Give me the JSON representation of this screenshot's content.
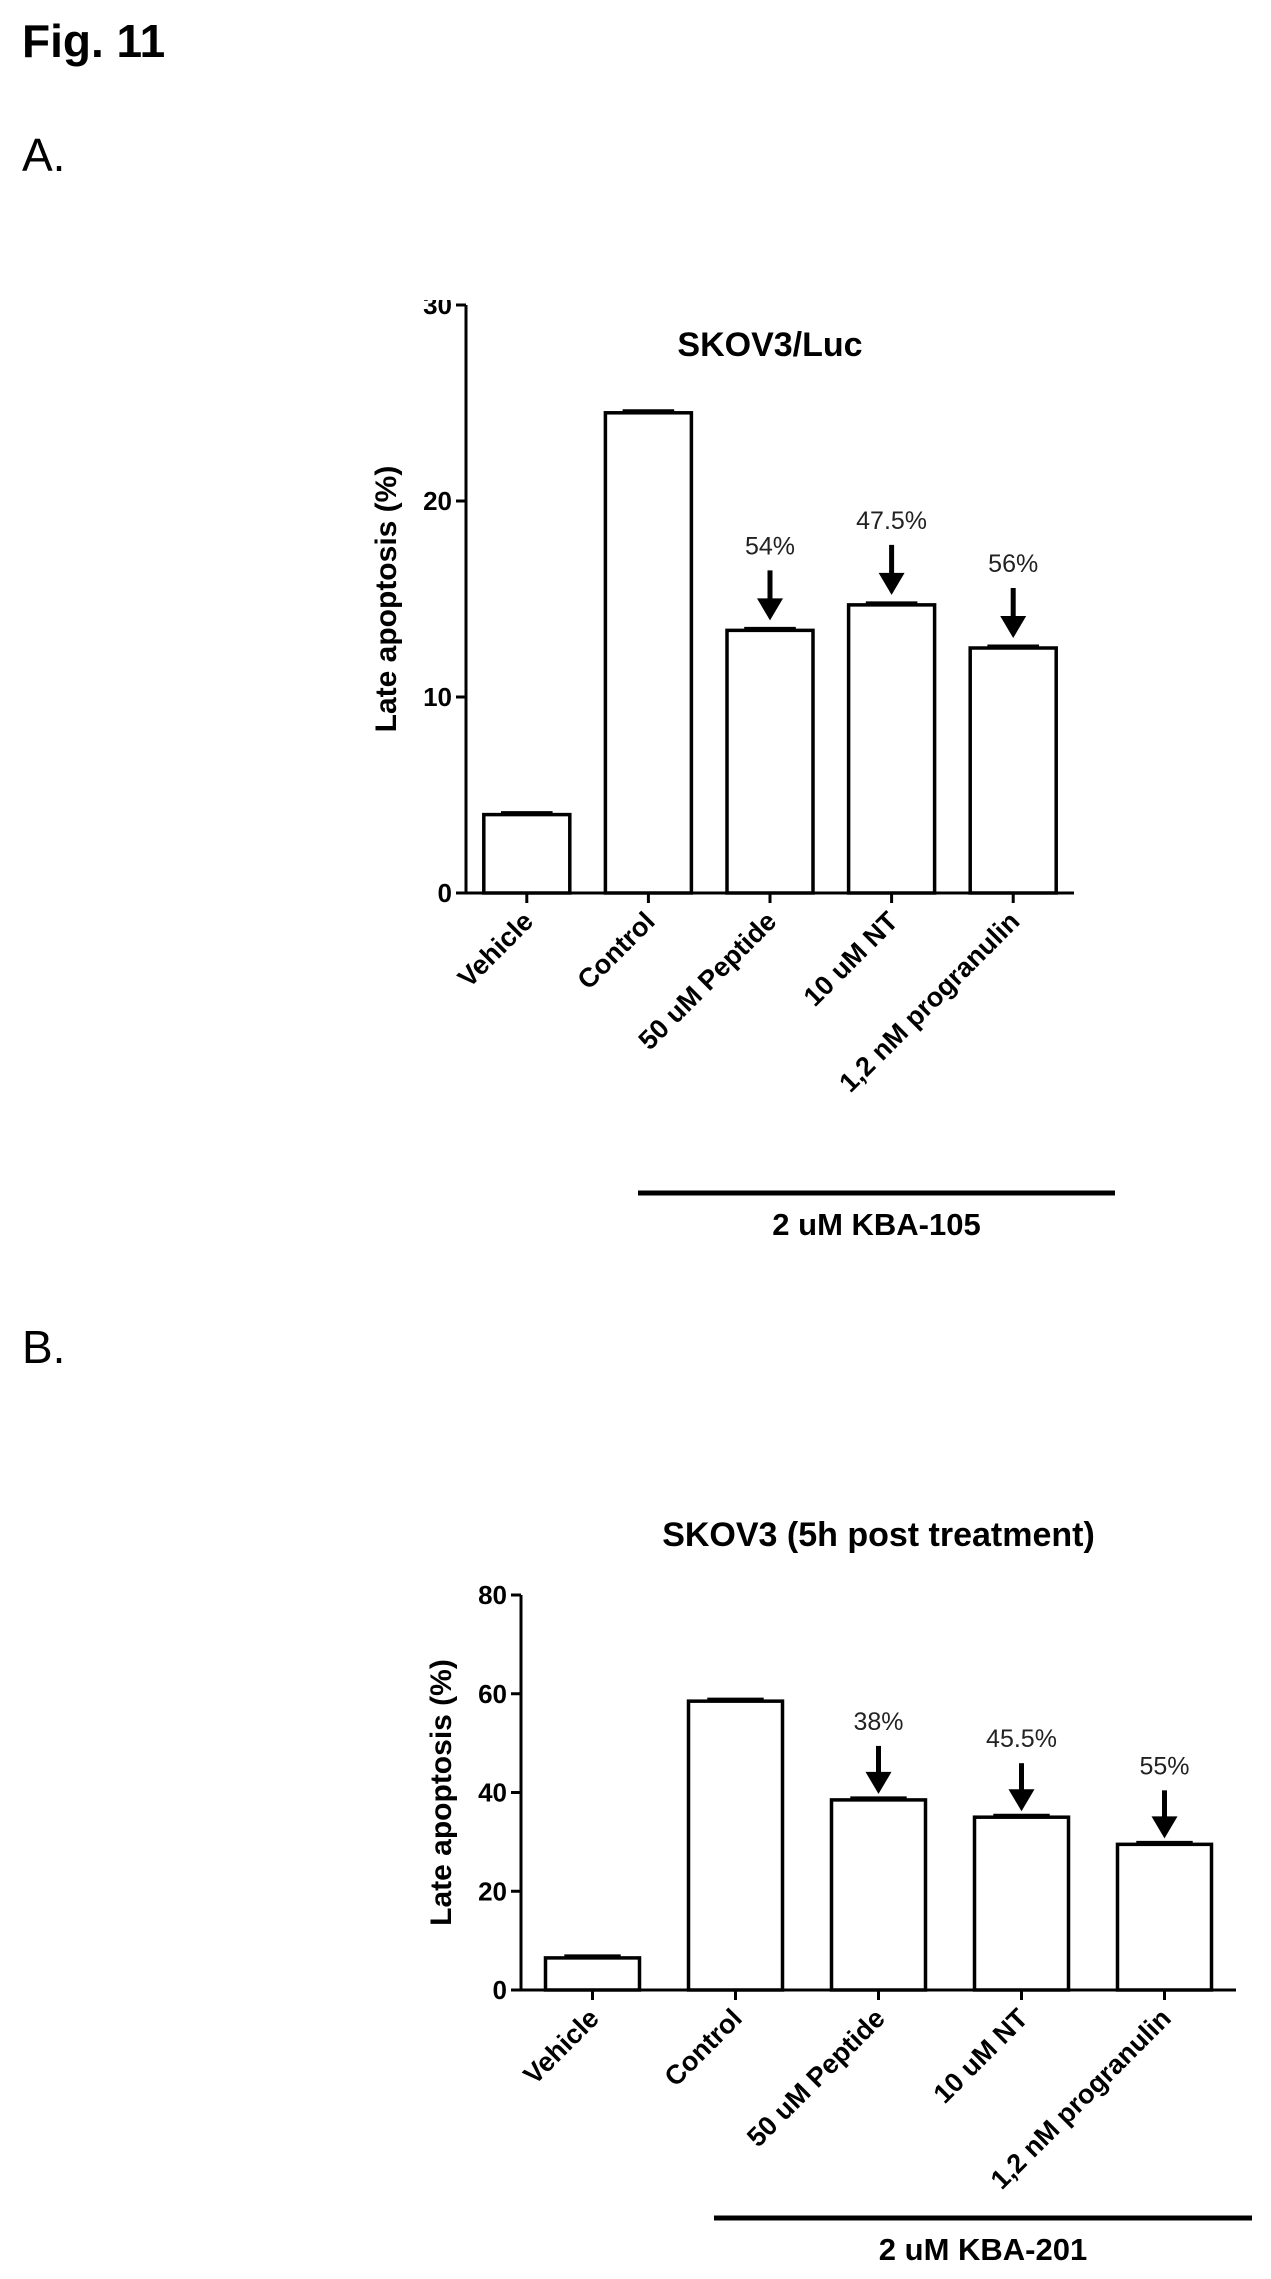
{
  "figure": {
    "label": "Fig. 11"
  },
  "panels": [
    {
      "label": "A."
    },
    {
      "label": "B."
    }
  ],
  "chart_data": [
    {
      "type": "bar",
      "title": "SKOV3/Luc",
      "ylabel": "Late apoptosis (%)",
      "xlabel": "",
      "categories": [
        "Vehicle",
        "Control",
        "50 uM Peptide",
        "10 uM NT",
        "1,2 nM progranulin"
      ],
      "values": [
        4,
        24.5,
        13.4,
        14.7,
        12.5
      ],
      "ylim": [
        0,
        30
      ],
      "yticks": [
        "0",
        "10",
        "20",
        "30"
      ],
      "annotations": [
        {
          "category": "50 uM Peptide",
          "text": "54%"
        },
        {
          "category": "10 uM NT",
          "text": "47.5%"
        },
        {
          "category": "1,2 nM progranulin",
          "text": "56%"
        }
      ],
      "treatment_group": {
        "label": "2 uM KBA-105",
        "from": "Control",
        "to": "1,2 nM progranulin"
      },
      "grid": false
    },
    {
      "type": "bar",
      "title": "SKOV3 (5h post treatment)",
      "ylabel": "Late apoptosis (%)",
      "xlabel": "",
      "categories": [
        "Vehicle",
        "Control",
        "50 uM Peptide",
        "10 uM NT",
        "1,2 nM progranulin"
      ],
      "values": [
        6.5,
        58.5,
        38.5,
        35,
        29.5
      ],
      "ylim": [
        0,
        80
      ],
      "yticks": [
        "0",
        "20",
        "40",
        "60",
        "80"
      ],
      "annotations": [
        {
          "category": "50 uM Peptide",
          "text": "38%"
        },
        {
          "category": "10 uM NT",
          "text": "45.5%"
        },
        {
          "category": "1,2 nM progranulin",
          "text": "55%"
        }
      ],
      "treatment_group": {
        "label": "2 uM KBA-201",
        "from": "Control",
        "to": "1,2 nM progranulin"
      },
      "grid": false
    }
  ]
}
